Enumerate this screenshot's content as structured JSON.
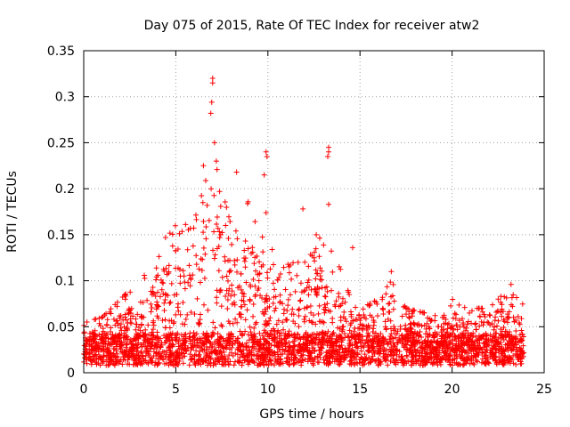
{
  "chart_data": {
    "type": "scatter",
    "title": "Day 075 of 2015, Rate Of TEC Index for receiver atw2",
    "xlabel": "GPS time / hours",
    "ylabel": "ROTI / TECUs",
    "xlim": [
      0,
      25
    ],
    "ylim": [
      0,
      0.35
    ],
    "x_ticks": [
      0,
      5,
      10,
      15,
      20,
      25
    ],
    "x_tick_labels": [
      "0",
      "5",
      "10",
      "15",
      "20",
      "25"
    ],
    "y_ticks": [
      0,
      0.05,
      0.1,
      0.15,
      0.2,
      0.25,
      0.3,
      0.35
    ],
    "y_tick_labels": [
      "0",
      "0.05",
      "0.1",
      "0.15",
      "0.2",
      "0.25",
      "0.3",
      "0.35"
    ],
    "grid": true,
    "marker": "+",
    "marker_color": "#ff0000",
    "x_data_range": [
      0,
      23.9
    ],
    "envelope": [
      {
        "x": 0.0,
        "y": 0.055
      },
      {
        "x": 1.0,
        "y": 0.06
      },
      {
        "x": 2.0,
        "y": 0.08
      },
      {
        "x": 3.0,
        "y": 0.1
      },
      {
        "x": 4.0,
        "y": 0.12
      },
      {
        "x": 4.5,
        "y": 0.155
      },
      {
        "x": 5.0,
        "y": 0.16
      },
      {
        "x": 6.0,
        "y": 0.165
      },
      {
        "x": 6.5,
        "y": 0.2
      },
      {
        "x": 7.0,
        "y": 0.25
      },
      {
        "x": 7.5,
        "y": 0.2
      },
      {
        "x": 8.0,
        "y": 0.16
      },
      {
        "x": 8.5,
        "y": 0.16
      },
      {
        "x": 9.0,
        "y": 0.19
      },
      {
        "x": 9.5,
        "y": 0.19
      },
      {
        "x": 10.0,
        "y": 0.17
      },
      {
        "x": 10.5,
        "y": 0.1
      },
      {
        "x": 11.0,
        "y": 0.12
      },
      {
        "x": 12.0,
        "y": 0.12
      },
      {
        "x": 12.5,
        "y": 0.15
      },
      {
        "x": 13.0,
        "y": 0.15
      },
      {
        "x": 13.5,
        "y": 0.13
      },
      {
        "x": 14.0,
        "y": 0.11
      },
      {
        "x": 14.5,
        "y": 0.08
      },
      {
        "x": 15.0,
        "y": 0.07
      },
      {
        "x": 16.0,
        "y": 0.08
      },
      {
        "x": 16.7,
        "y": 0.1
      },
      {
        "x": 17.5,
        "y": 0.07
      },
      {
        "x": 18.5,
        "y": 0.065
      },
      {
        "x": 19.5,
        "y": 0.06
      },
      {
        "x": 20.0,
        "y": 0.08
      },
      {
        "x": 21.0,
        "y": 0.07
      },
      {
        "x": 22.0,
        "y": 0.07
      },
      {
        "x": 23.0,
        "y": 0.09
      },
      {
        "x": 23.9,
        "y": 0.075
      }
    ],
    "outliers": [
      {
        "x": 7.0,
        "y": 0.32
      },
      {
        "x": 7.0,
        "y": 0.315
      },
      {
        "x": 6.95,
        "y": 0.294
      },
      {
        "x": 6.9,
        "y": 0.282
      },
      {
        "x": 7.1,
        "y": 0.25
      },
      {
        "x": 6.5,
        "y": 0.225
      },
      {
        "x": 8.3,
        "y": 0.218
      },
      {
        "x": 9.9,
        "y": 0.24
      },
      {
        "x": 9.95,
        "y": 0.235
      },
      {
        "x": 9.8,
        "y": 0.215
      },
      {
        "x": 13.3,
        "y": 0.245
      },
      {
        "x": 13.3,
        "y": 0.24
      },
      {
        "x": 13.25,
        "y": 0.235
      },
      {
        "x": 13.3,
        "y": 0.183
      },
      {
        "x": 11.9,
        "y": 0.178
      },
      {
        "x": 14.6,
        "y": 0.136
      },
      {
        "x": 16.7,
        "y": 0.11
      },
      {
        "x": 23.2,
        "y": 0.096
      }
    ]
  }
}
